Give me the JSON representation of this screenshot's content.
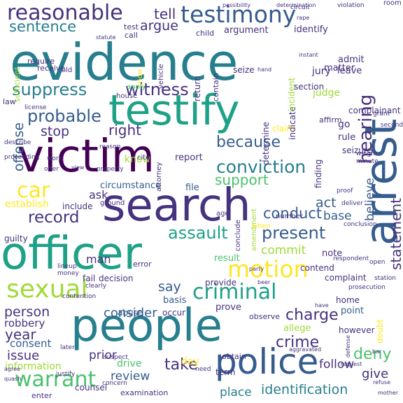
{
  "palette": {
    "background": "#ffffff",
    "viridis": [
      "#440154",
      "#46327e",
      "#365c8d",
      "#277f8e",
      "#1fa187",
      "#4ac16d",
      "#a0da39",
      "#fde725"
    ]
  },
  "words": [
    {
      "text": "evidence",
      "color": "#277f8e"
    },
    {
      "text": "testify",
      "color": "#1fa187"
    },
    {
      "text": "victim",
      "color": "#440154"
    },
    {
      "text": "search",
      "color": "#46327e"
    },
    {
      "text": "officer",
      "color": "#1fa187"
    },
    {
      "text": "people",
      "color": "#277f8e"
    },
    {
      "text": "arrest",
      "color": "#365c8d"
    },
    {
      "text": "police",
      "color": "#365c8d"
    },
    {
      "text": "testimony",
      "color": "#365c8d"
    },
    {
      "text": "reasonable",
      "color": "#46327e"
    },
    {
      "text": "sexual",
      "color": "#a0da39"
    },
    {
      "text": "criminal",
      "color": "#1fa187"
    },
    {
      "text": "motion",
      "color": "#fde725"
    },
    {
      "text": "warrant",
      "color": "#4ac16d"
    },
    {
      "text": "car",
      "color": "#fde725"
    },
    {
      "text": "conviction",
      "color": "#277f8e"
    },
    {
      "text": "hearing",
      "color": "#46327e"
    },
    {
      "text": "suppress",
      "color": "#277f8e"
    },
    {
      "text": "probable",
      "color": "#365c8d"
    },
    {
      "text": "witness",
      "color": "#46327e"
    },
    {
      "text": "sentence",
      "color": "#277f8e"
    },
    {
      "text": "record",
      "color": "#46327e"
    },
    {
      "text": "assault",
      "color": "#1fa187"
    },
    {
      "text": "present",
      "color": "#365c8d"
    },
    {
      "text": "because",
      "color": "#365c8d"
    },
    {
      "text": "statement",
      "color": "#46327e"
    },
    {
      "text": "charge",
      "color": "#46327e"
    },
    {
      "text": "crime",
      "color": "#46327e"
    },
    {
      "text": "deny",
      "color": "#4ac16d"
    },
    {
      "text": "take",
      "color": "#46327e"
    },
    {
      "text": "identification",
      "color": "#277f8e"
    },
    {
      "text": "tell",
      "color": "#46327e"
    },
    {
      "text": "argue",
      "color": "#46327e"
    },
    {
      "text": "conduct",
      "color": "#365c8d"
    },
    {
      "text": "support",
      "color": "#4ac16d"
    },
    {
      "text": "right",
      "color": "#46327e"
    },
    {
      "text": "stop",
      "color": "#46327e"
    },
    {
      "text": "offense",
      "color": "#365c8d"
    },
    {
      "text": "person",
      "color": "#46327e"
    },
    {
      "text": "year",
      "color": "#46327e"
    },
    {
      "text": "consider",
      "color": "#365c8d"
    },
    {
      "text": "say",
      "color": "#365c8d"
    },
    {
      "text": "believe",
      "color": "#365c8d"
    },
    {
      "text": "act",
      "color": "#365c8d"
    },
    {
      "text": "base",
      "color": "#365c8d"
    },
    {
      "text": "commit",
      "color": "#a0da39"
    },
    {
      "text": "issue",
      "color": "#46327e"
    },
    {
      "text": "consent",
      "color": "#365c8d"
    },
    {
      "text": "robbery",
      "color": "#46327e"
    },
    {
      "text": "prior",
      "color": "#46327e"
    },
    {
      "text": "drive",
      "color": "#4ac16d"
    },
    {
      "text": "review",
      "color": "#365c8d"
    },
    {
      "text": "give",
      "color": "#46327e"
    },
    {
      "text": "follow",
      "color": "#46327e"
    },
    {
      "text": "place",
      "color": "#277f8e"
    },
    {
      "text": "ask",
      "color": "#46327e"
    },
    {
      "text": "know",
      "color": "#a0da39"
    },
    {
      "text": "man",
      "color": "#46327e"
    },
    {
      "text": "establish",
      "color": "#fde725"
    },
    {
      "text": "identify",
      "color": "#46327e"
    },
    {
      "text": "jury",
      "color": "#46327e"
    },
    {
      "text": "admit",
      "color": "#46327e"
    },
    {
      "text": "leave",
      "color": "#46327e"
    },
    {
      "text": "judge",
      "color": "#a0da39"
    },
    {
      "text": "go",
      "color": "#46327e"
    },
    {
      "text": "rule",
      "color": "#46327e"
    },
    {
      "text": "matter",
      "color": "#46327e"
    },
    {
      "text": "report",
      "color": "#46327e"
    },
    {
      "text": "file",
      "color": "#365c8d"
    },
    {
      "text": "circumstance",
      "color": "#365c8d"
    },
    {
      "text": "include",
      "color": "#46327e"
    },
    {
      "text": "abuse",
      "color": "#365c8d"
    },
    {
      "text": "occur",
      "color": "#46327e"
    },
    {
      "text": "prove",
      "color": "#46327e"
    },
    {
      "text": "basis",
      "color": "#365c8d"
    },
    {
      "text": "provide",
      "color": "#46327e"
    },
    {
      "text": "result",
      "color": "#4ac16d"
    },
    {
      "text": "note",
      "color": "#46327e"
    },
    {
      "text": "complaint",
      "color": "#46327e"
    },
    {
      "text": "home",
      "color": "#46327e"
    },
    {
      "text": "however",
      "color": "#46327e"
    },
    {
      "text": "point",
      "color": "#365c8d"
    },
    {
      "text": "allege",
      "color": "#a0da39"
    },
    {
      "text": "observe",
      "color": "#46327e"
    },
    {
      "text": "day",
      "color": "#fde725"
    },
    {
      "text": "term",
      "color": "#46327e"
    },
    {
      "text": "obtain",
      "color": "#46327e"
    },
    {
      "text": "information",
      "color": "#a0da39"
    },
    {
      "text": "counsel",
      "color": "#46327e"
    },
    {
      "text": "examination",
      "color": "#46327e"
    },
    {
      "text": "enter",
      "color": "#46327e"
    },
    {
      "text": "guilty",
      "color": "#46327e"
    },
    {
      "text": "fail",
      "color": "#46327e"
    },
    {
      "text": "decision",
      "color": "#46327e"
    },
    {
      "text": "error",
      "color": "#46327e"
    },
    {
      "text": "contend",
      "color": "#46327e"
    },
    {
      "text": "doubt",
      "color": "#fde725"
    },
    {
      "text": "finding",
      "color": "#46327e"
    },
    {
      "text": "claim",
      "color": "#fde725"
    },
    {
      "text": "determine",
      "color": "#46327e"
    },
    {
      "text": "indicate",
      "color": "#46327e"
    },
    {
      "text": "incident",
      "color": "#a0da39"
    },
    {
      "text": "seize",
      "color": "#46327e"
    },
    {
      "text": "return",
      "color": "#46327e"
    },
    {
      "text": "contain",
      "color": "#46327e"
    },
    {
      "text": "child",
      "color": "#46327e"
    },
    {
      "text": "argument",
      "color": "#46327e"
    },
    {
      "text": "receive",
      "color": "#46327e"
    },
    {
      "text": "require",
      "color": "#46327e"
    },
    {
      "text": "law",
      "color": "#46327e"
    },
    {
      "text": "section",
      "color": "#46327e"
    },
    {
      "text": "complainant",
      "color": "#46327e"
    },
    {
      "text": "seizure",
      "color": "#46327e"
    },
    {
      "text": "affirm",
      "color": "#46327e"
    },
    {
      "text": "attorney",
      "color": "#46327e"
    },
    {
      "text": "ground",
      "color": "#46327e"
    },
    {
      "text": "number",
      "color": "#46327e"
    },
    {
      "text": "conclude",
      "color": "#46327e"
    },
    {
      "text": "age",
      "color": "#46327e"
    },
    {
      "text": "amendment",
      "color": "#a0da39"
    },
    {
      "text": "when",
      "color": "#fde725"
    },
    {
      "text": "cite",
      "color": "#46327e"
    },
    {
      "text": "test",
      "color": "#46327e"
    },
    {
      "text": "call",
      "color": "#46327e"
    },
    {
      "text": "vehicle",
      "color": "#46327e"
    },
    {
      "text": "show",
      "color": "#fde725"
    },
    {
      "text": "sufficient",
      "color": "#a0da39"
    },
    {
      "text": "old",
      "color": "#46327e"
    },
    {
      "text": "apply",
      "color": "#4ac16d"
    },
    {
      "text": "house",
      "color": "#46327e"
    },
    {
      "text": "license",
      "color": "#46327e"
    },
    {
      "text": "reason",
      "color": "#46327e"
    },
    {
      "text": "describe",
      "color": "#46327e"
    },
    {
      "text": "work",
      "color": "#46327e"
    },
    {
      "text": "offer",
      "color": "#46327e"
    },
    {
      "text": "property",
      "color": "#46327e"
    },
    {
      "text": "lineup",
      "color": "#46327e"
    },
    {
      "text": "money",
      "color": "#46327e"
    },
    {
      "text": "clearly",
      "color": "#46327e"
    },
    {
      "text": "contention",
      "color": "#46327e"
    },
    {
      "text": "suspect",
      "color": "#46327e"
    },
    {
      "text": "later",
      "color": "#46327e"
    },
    {
      "text": "concern",
      "color": "#46327e"
    },
    {
      "text": "justify",
      "color": "#46327e"
    },
    {
      "text": "need",
      "color": "#46327e"
    },
    {
      "text": "respondent",
      "color": "#46327e"
    },
    {
      "text": "conclusion",
      "color": "#46327e"
    },
    {
      "text": "deliver",
      "color": "#46327e"
    },
    {
      "text": "proof",
      "color": "#46327e"
    },
    {
      "text": "minute",
      "color": "#46327e"
    },
    {
      "text": "weight",
      "color": "#46327e"
    },
    {
      "text": "grant",
      "color": "#46327e"
    },
    {
      "text": "second",
      "color": "#46327e"
    },
    {
      "text": "prosecution",
      "color": "#46327e"
    },
    {
      "text": "station",
      "color": "#46327e"
    },
    {
      "text": "open",
      "color": "#46327e"
    },
    {
      "text": "aggravated",
      "color": "#46327e"
    },
    {
      "text": "defense",
      "color": "#46327e"
    },
    {
      "text": "request",
      "color": "#46327e"
    },
    {
      "text": "refuse",
      "color": "#46327e"
    },
    {
      "text": "mother",
      "color": "#46327e"
    },
    {
      "text": "bar",
      "color": "#46327e"
    },
    {
      "text": "have",
      "color": "#46327e"
    },
    {
      "text": "statute",
      "color": "#46327e"
    },
    {
      "text": "circuit",
      "color": "#46327e"
    },
    {
      "text": "violation",
      "color": "#46327e"
    },
    {
      "text": "room",
      "color": "#46327e"
    },
    {
      "text": "determination",
      "color": "#46327e"
    },
    {
      "text": "possibility",
      "color": "#46327e"
    },
    {
      "text": "rape",
      "color": "#46327e"
    },
    {
      "text": "instant",
      "color": "#46327e"
    },
    {
      "text": "hand",
      "color": "#46327e"
    },
    {
      "text": "quash",
      "color": "#46327e"
    },
    {
      "text": "agree",
      "color": "#46327e"
    },
    {
      "text": "proceeding",
      "color": "#46327e"
    },
    {
      "text": "view",
      "color": "#46327e"
    },
    {
      "text": "party",
      "color": "#46327e"
    },
    {
      "text": "beer",
      "color": "#46327e"
    }
  ]
}
